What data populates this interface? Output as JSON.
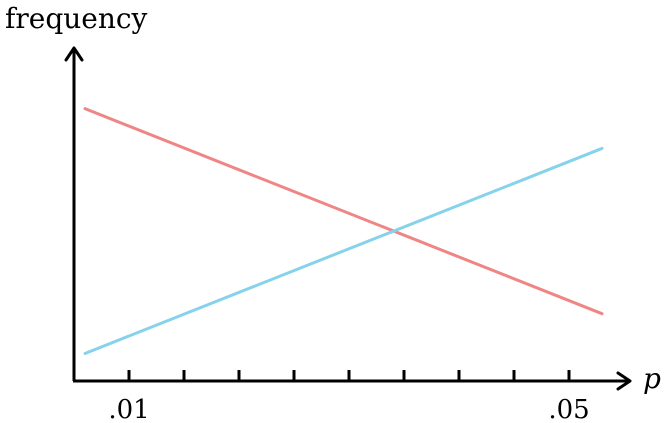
{
  "chart_data": {
    "type": "line",
    "title": "",
    "xlabel": "p",
    "ylabel": "frequency",
    "xlim": [
      0.005,
      0.055
    ],
    "ylim": [
      0,
      1
    ],
    "x_tick_values": [
      0.01,
      0.015,
      0.02,
      0.025,
      0.03,
      0.035,
      0.04,
      0.045,
      0.05
    ],
    "x_tick_labels": [
      {
        "value": 0.01,
        "label": ".01"
      },
      {
        "value": 0.05,
        "label": ".05"
      }
    ],
    "grid": false,
    "legend": "none",
    "series": [
      {
        "color": "#ef8585",
        "x": [
          0.006,
          0.053
        ],
        "y": [
          0.89,
          0.22
        ]
      },
      {
        "color": "#86d2ec",
        "x": [
          0.006,
          0.053
        ],
        "y": [
          0.09,
          0.76
        ]
      }
    ]
  }
}
